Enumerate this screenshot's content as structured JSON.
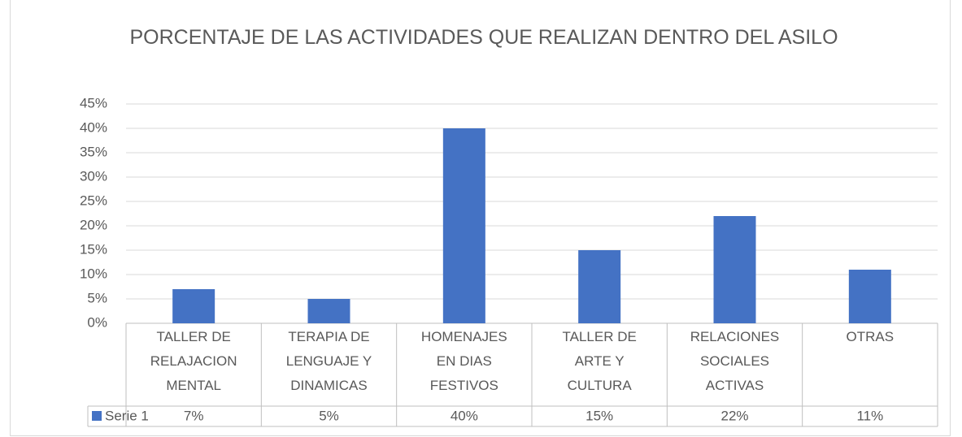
{
  "chart_data": {
    "type": "bar",
    "title": "PORCENTAJE DE LAS ACTIVIDADES QUE REALIZAN DENTRO DEL ASILO",
    "categories": [
      "TALLER DE RELAJACION MENTAL",
      "TERAPIA DE LENGUAJE Y DINAMICAS",
      "HOMENAJES EN DIAS FESTIVOS",
      "TALLER DE ARTE Y CULTURA",
      "RELACIONES SOCIALES ACTIVAS",
      "OTRAS"
    ],
    "series": [
      {
        "name": "Serie 1",
        "color": "#4472c4",
        "values": [
          7,
          5,
          40,
          15,
          22,
          11
        ],
        "value_labels": [
          "7%",
          "5%",
          "40%",
          "15%",
          "22%",
          "11%"
        ]
      }
    ],
    "ylim": [
      0,
      45
    ],
    "yticks": [
      {
        "value": 0,
        "label": "0%"
      },
      {
        "value": 5,
        "label": "5%"
      },
      {
        "value": 10,
        "label": "10%"
      },
      {
        "value": 15,
        "label": "15%"
      },
      {
        "value": 20,
        "label": "20%"
      },
      {
        "value": 25,
        "label": "25%"
      },
      {
        "value": 30,
        "label": "30%"
      },
      {
        "value": 35,
        "label": "35%"
      },
      {
        "value": 40,
        "label": "40%"
      },
      {
        "value": 45,
        "label": "45%"
      }
    ],
    "grid": true,
    "data_table": true
  }
}
